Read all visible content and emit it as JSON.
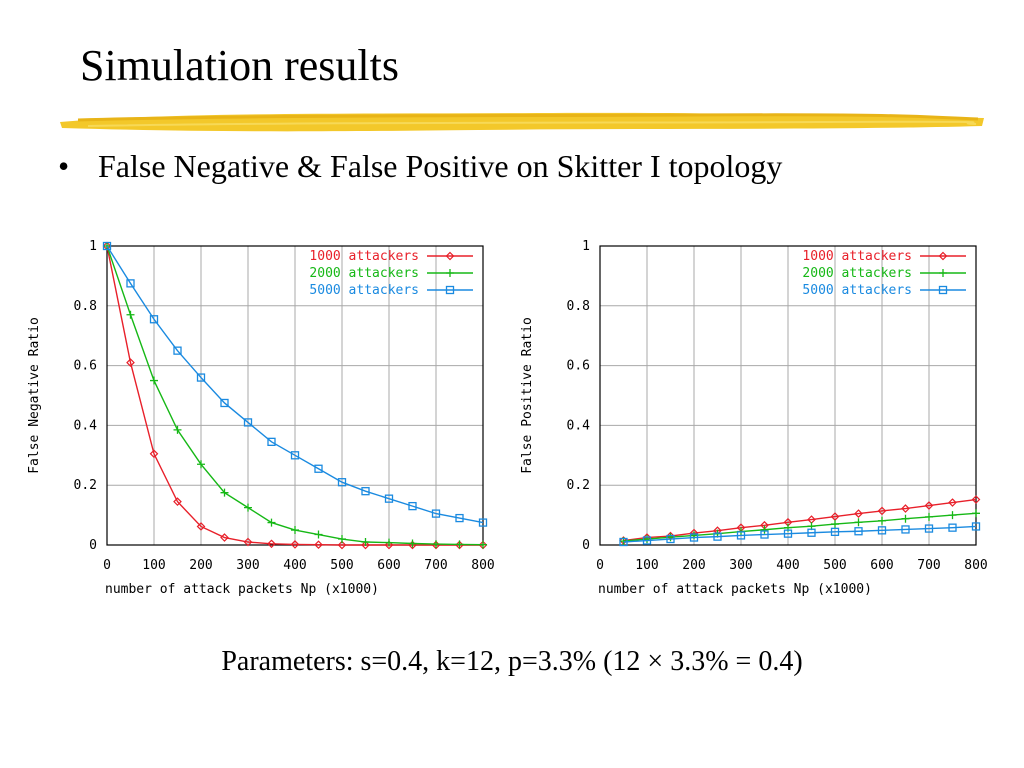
{
  "slide": {
    "title": "Simulation results",
    "bullet": "False Negative & False Positive on Skitter I topology",
    "parameters": "Parameters: s=0.4, k=12, p=3.3% (12 × 3.3% = 0.4)"
  },
  "chart_data": [
    {
      "type": "line",
      "ylabel": "False Negative Ratio",
      "xlabel": "number of attack packets Np (x1000)",
      "xlim": [
        0,
        800
      ],
      "ylim": [
        0,
        1
      ],
      "xticks": [
        "0",
        "100",
        "200",
        "300",
        "400",
        "500",
        "600",
        "700",
        "800"
      ],
      "yticks": [
        "0",
        "0.2",
        "0.4",
        "0.6",
        "0.8",
        "1"
      ],
      "grid": true,
      "legend_position": "top-right",
      "series": [
        {
          "name": "1000 attackers",
          "color": "#e8202a",
          "marker": "diamond",
          "x": [
            0,
            50,
            100,
            150,
            200,
            250,
            300,
            350,
            400,
            450,
            500,
            550,
            600,
            650,
            700,
            750,
            800
          ],
          "y": [
            1.0,
            0.61,
            0.305,
            0.145,
            0.062,
            0.025,
            0.01,
            0.004,
            0.002,
            0.001,
            0,
            0,
            0,
            0,
            0,
            0,
            0
          ]
        },
        {
          "name": "2000 attackers",
          "color": "#16b816",
          "marker": "plus",
          "x": [
            0,
            50,
            100,
            150,
            200,
            250,
            300,
            350,
            400,
            450,
            500,
            550,
            600,
            650,
            700,
            750,
            800
          ],
          "y": [
            1.0,
            0.77,
            0.55,
            0.385,
            0.27,
            0.175,
            0.125,
            0.075,
            0.05,
            0.035,
            0.02,
            0.01,
            0.008,
            0.005,
            0.003,
            0.002,
            0.001
          ]
        },
        {
          "name": "5000 attackers",
          "color": "#1a8ae0",
          "marker": "square",
          "x": [
            0,
            50,
            100,
            150,
            200,
            250,
            300,
            350,
            400,
            450,
            500,
            550,
            600,
            650,
            700,
            750,
            800
          ],
          "y": [
            1.0,
            0.875,
            0.755,
            0.65,
            0.56,
            0.475,
            0.41,
            0.345,
            0.3,
            0.255,
            0.21,
            0.18,
            0.155,
            0.13,
            0.105,
            0.09,
            0.075
          ]
        }
      ]
    },
    {
      "type": "line",
      "ylabel": "False Positive Ratio",
      "xlabel": "number of attack packets Np (x1000)",
      "xlim": [
        0,
        800
      ],
      "ylim": [
        0,
        1
      ],
      "xticks": [
        "0",
        "100",
        "200",
        "300",
        "400",
        "500",
        "600",
        "700",
        "800"
      ],
      "yticks": [
        "0",
        "0.2",
        "0.4",
        "0.6",
        "0.8",
        "1"
      ],
      "grid": true,
      "legend_position": "top-right",
      "series": [
        {
          "name": "1000 attackers",
          "color": "#e8202a",
          "marker": "diamond",
          "x": [
            50,
            100,
            150,
            200,
            250,
            300,
            350,
            400,
            450,
            500,
            550,
            600,
            650,
            700,
            750,
            800
          ],
          "y": [
            0.015,
            0.025,
            0.03,
            0.04,
            0.048,
            0.058,
            0.066,
            0.076,
            0.085,
            0.095,
            0.105,
            0.114,
            0.122,
            0.132,
            0.142,
            0.152
          ]
        },
        {
          "name": "2000 attackers",
          "color": "#16b816",
          "marker": "plus",
          "x": [
            50,
            100,
            150,
            200,
            250,
            300,
            350,
            400,
            450,
            500,
            550,
            600,
            650,
            700,
            750,
            800
          ],
          "y": [
            0.013,
            0.02,
            0.026,
            0.032,
            0.038,
            0.045,
            0.051,
            0.058,
            0.063,
            0.07,
            0.076,
            0.081,
            0.088,
            0.094,
            0.1,
            0.106
          ]
        },
        {
          "name": "5000 attackers",
          "color": "#1a8ae0",
          "marker": "square",
          "x": [
            50,
            100,
            150,
            200,
            250,
            300,
            350,
            400,
            450,
            500,
            550,
            600,
            650,
            700,
            750,
            800
          ],
          "y": [
            0.01,
            0.015,
            0.02,
            0.025,
            0.028,
            0.032,
            0.035,
            0.038,
            0.041,
            0.044,
            0.046,
            0.049,
            0.052,
            0.055,
            0.058,
            0.062
          ]
        }
      ]
    }
  ]
}
